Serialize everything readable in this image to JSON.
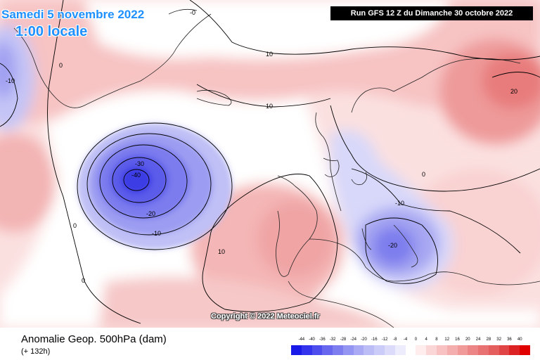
{
  "header": {
    "date_title": "Samedi 5 novembre 2022",
    "time_title": "1:00 locale",
    "run_info": "Run GFS 12 Z du Dimanche 30 octobre 2022"
  },
  "map": {
    "contour_labels": [
      "-0",
      "-10",
      "10",
      "10",
      "-30",
      "-40",
      "-20",
      "-10",
      "0",
      "10",
      "0",
      "-10",
      "-20",
      "0",
      "20",
      "0"
    ],
    "copyright": "Copyright © 2022 Meteociel.fr"
  },
  "footer": {
    "parameter": "Anomalie Geop. 500hPa (dam)",
    "lead_time": "(+ 132h)"
  },
  "legend": {
    "ticks": [
      "-44",
      "-40",
      "-36",
      "-32",
      "-28",
      "-24",
      "-20",
      "-16",
      "-12",
      "-8",
      "-4",
      "0",
      "4",
      "8",
      "12",
      "16",
      "20",
      "24",
      "28",
      "32",
      "36",
      "40"
    ],
    "colors": [
      "#1a1ae8",
      "#3333ee",
      "#4d4dee",
      "#6666ee",
      "#7d7df0",
      "#9494f2",
      "#aaaaf4",
      "#bcbcf6",
      "#ccccf8",
      "#dcdcfa",
      "#ececfc",
      "#ffffff",
      "#ffecec",
      "#fbd6d6",
      "#f8c2c2",
      "#f4aeae",
      "#f09a9a",
      "#ec8686",
      "#e87272",
      "#e45e5e",
      "#e04444",
      "#dc2222",
      "#e00000"
    ]
  }
}
